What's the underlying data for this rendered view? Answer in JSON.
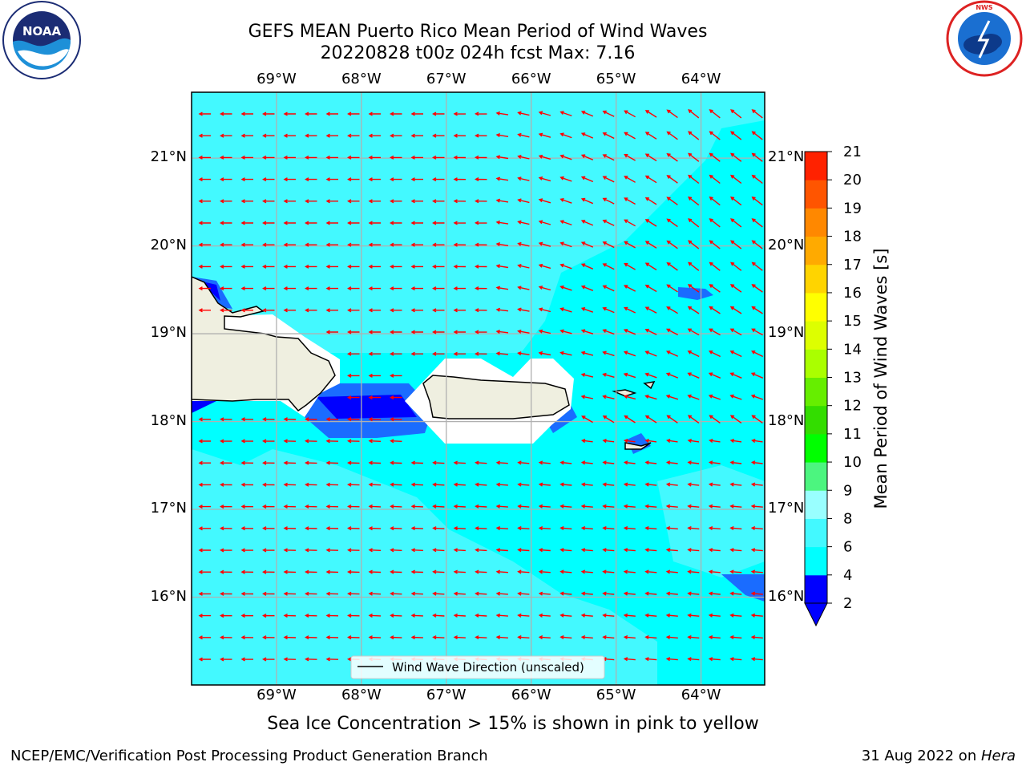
{
  "title": {
    "line1": "GEFS MEAN Puerto Rico Mean Period of Wind Waves",
    "line2": "20220828 t00z 024h fcst   Max: 7.16"
  },
  "logos": {
    "left": {
      "name": "noaa-logo",
      "text": "NOAA",
      "ring_text": "NATIONAL OCEANIC AND ATMOSPHERIC ADMINISTRATION • U.S. DEPARTMENT OF COMMERCE"
    },
    "right": {
      "name": "national-weather-service-logo",
      "ring_text": "NATIONAL WEATHER SERVICE"
    }
  },
  "map": {
    "lon_range": [
      -70.0,
      -63.25
    ],
    "lat_range": [
      15.0,
      21.75
    ],
    "lon_ticks": [
      "69°W",
      "68°W",
      "67°W",
      "66°W",
      "65°W",
      "64°W"
    ],
    "lat_ticks": [
      "21°N",
      "20°N",
      "19°N",
      "18°N",
      "17°N",
      "16°N"
    ],
    "land_color": "#efefe0",
    "grid_color": "#b0b0b0",
    "arrow_color": "#ff0000",
    "legend_label": "Wind Wave Direction (unscaled)"
  },
  "colorbar": {
    "label": "Mean Period of Wind Waves [s]",
    "tick_labels": [
      "2",
      "4",
      "6",
      "8",
      "9",
      "10",
      "11",
      "12",
      "13",
      "14",
      "15",
      "16",
      "17",
      "18",
      "19",
      "20",
      "21"
    ],
    "colors": [
      "#0000ff",
      "#00ffff",
      "#43f9ff",
      "#99ffff",
      "#4cf57f",
      "#00ff00",
      "#33dd00",
      "#66ee00",
      "#aaff00",
      "#ddff00",
      "#ffff00",
      "#ffd400",
      "#ffaa00",
      "#ff8800",
      "#ff5500",
      "#ff2200"
    ],
    "under_color": "#0000ff"
  },
  "note": "Sea Ice Concentration > 15% is shown in pink to yellow",
  "footer": {
    "left": "NCEP/EMC/Verification Post Processing Product Generation Branch",
    "right_prefix": "31 Aug 2022 on ",
    "right_machine": "Hera"
  }
}
